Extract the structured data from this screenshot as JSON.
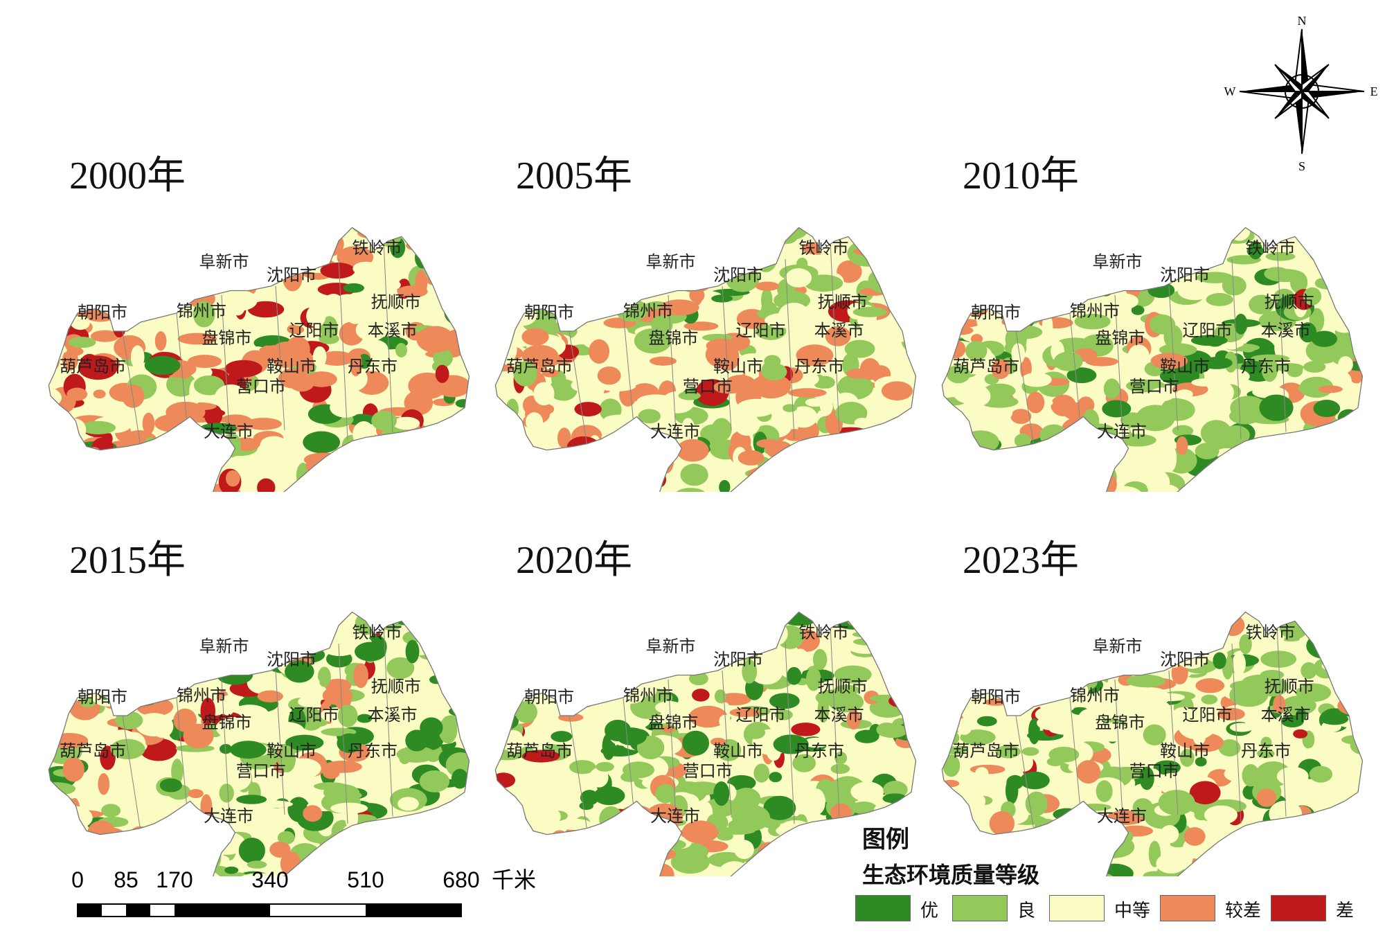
{
  "panels": [
    {
      "year": "2000年",
      "scheme": [
        0.05,
        0.15,
        0.25,
        0.42,
        0.13
      ]
    },
    {
      "year": "2005年",
      "scheme": [
        0.05,
        0.28,
        0.35,
        0.27,
        0.05
      ]
    },
    {
      "year": "2010年",
      "scheme": [
        0.18,
        0.38,
        0.29,
        0.13,
        0.02
      ]
    },
    {
      "year": "2015年",
      "scheme": [
        0.22,
        0.3,
        0.24,
        0.2,
        0.04
      ]
    },
    {
      "year": "2020年",
      "scheme": [
        0.16,
        0.36,
        0.31,
        0.14,
        0.03
      ]
    },
    {
      "year": "2023年",
      "scheme": [
        0.12,
        0.32,
        0.38,
        0.16,
        0.02
      ]
    }
  ],
  "cities": [
    "铁岭市",
    "阜新市",
    "沈阳市",
    "抚顺市",
    "朝阳市",
    "锦州市",
    "辽阳市",
    "本溪市",
    "盘锦市",
    "葫芦岛市",
    "鞍山市",
    "丹东市",
    "营口市",
    "大连市"
  ],
  "compass": {
    "n": "N",
    "s": "S",
    "e": "E",
    "w": "W"
  },
  "scale": {
    "ticks": [
      "0",
      "85",
      "170",
      "340",
      "510",
      "680"
    ],
    "unit": "千米"
  },
  "legend": {
    "title": "图例",
    "subtitle": "生态环境质量等级",
    "items": [
      {
        "label": "优",
        "color": "#2e8b23"
      },
      {
        "label": "良",
        "color": "#93c95b"
      },
      {
        "label": "中等",
        "color": "#fbfbc4"
      },
      {
        "label": "较差",
        "color": "#ee8a5a"
      },
      {
        "label": "差",
        "color": "#c0191b"
      }
    ]
  }
}
